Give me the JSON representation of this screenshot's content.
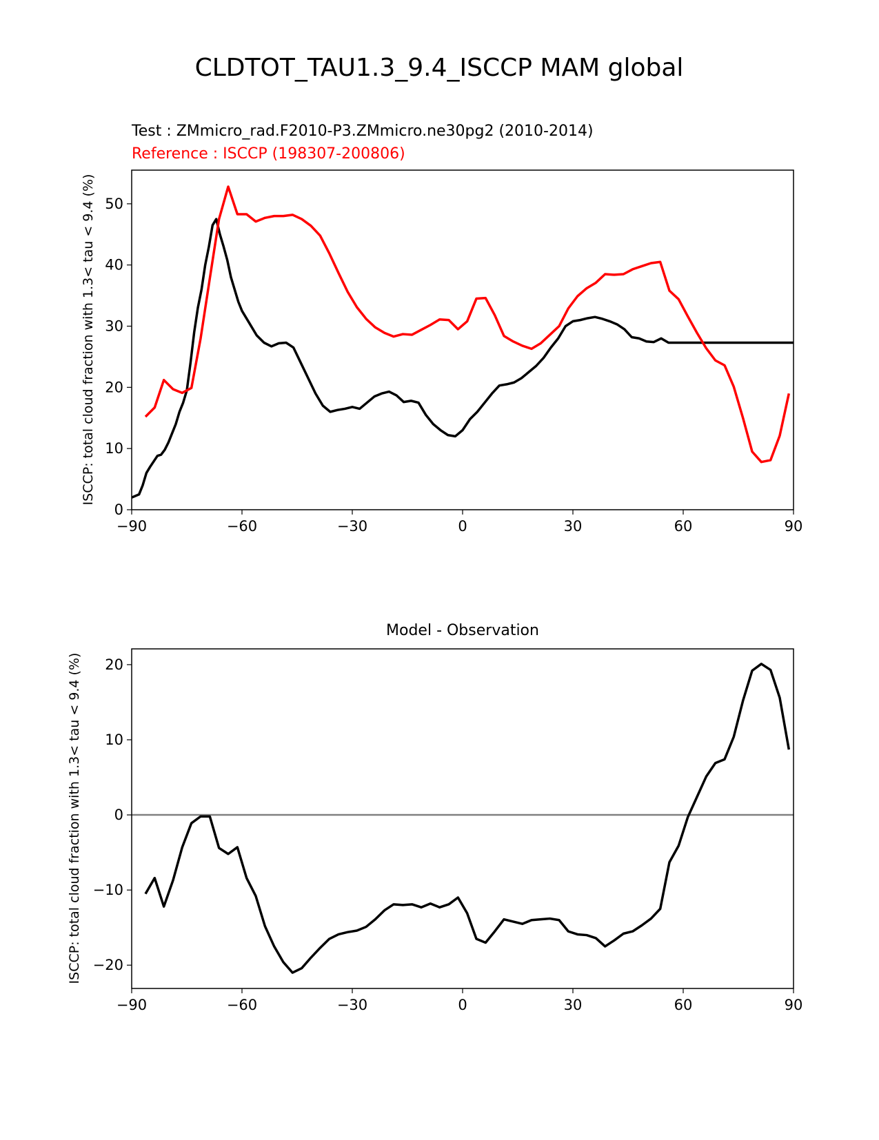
{
  "figure_title": "CLDTOT_TAU1.3_9.4_ISCCP MAM global",
  "colors": {
    "test": "#000000",
    "reference": "#ff0000",
    "zero_line": "#808080"
  },
  "chart_data": [
    {
      "type": "line",
      "test_label": "Test : ZMmicro_rad.F2010-P3.ZMmicro.ne30pg2 (2010-2014)",
      "reference_label": "Reference : ISCCP (198307-200806)",
      "ylabel": "ISCCP: total cloud fraction with 1.3< tau < 9.4 (%)",
      "xlim": [
        -90,
        90
      ],
      "ylim": [
        0,
        55.5
      ],
      "xticks": [
        -90,
        -60,
        -30,
        0,
        30,
        60,
        90
      ],
      "xtick_labels": [
        "−90",
        "−60",
        "−30",
        "0",
        "30",
        "60",
        "90"
      ],
      "yticks": [
        0,
        10,
        20,
        30,
        40,
        50
      ],
      "ytick_labels": [
        "0",
        "10",
        "20",
        "30",
        "40",
        "50"
      ],
      "series": [
        {
          "role": "test",
          "x": [
            -90,
            -88,
            -87,
            -86,
            -85,
            -83,
            -82,
            -81,
            -80,
            -79,
            -78,
            -77,
            -76,
            -75,
            -74,
            -73,
            -72,
            -71,
            -70,
            -69,
            -68,
            -67,
            -66,
            -65,
            -64,
            -63,
            -62,
            -61,
            -60,
            -59,
            -58,
            -56,
            -54,
            -52,
            -50,
            -48,
            -46,
            -44,
            -42,
            -40,
            -38,
            -36,
            -34,
            -32,
            -30,
            -28,
            -26,
            -24,
            -22,
            -20,
            -18,
            -16,
            -14,
            -12,
            -10,
            -8,
            -6,
            -4,
            -2,
            0,
            2,
            4,
            6,
            8,
            10,
            12,
            14,
            16,
            18,
            20,
            22,
            24,
            26,
            28,
            30,
            32,
            34,
            36,
            38,
            40,
            42,
            44,
            46,
            48,
            50,
            52,
            54,
            56,
            58,
            60,
            62,
            64,
            66,
            68,
            70,
            72,
            74,
            76,
            78,
            80,
            82,
            84,
            86,
            88,
            90
          ],
          "y": [
            2,
            2.5,
            4,
            6,
            7,
            8.8,
            9,
            9.8,
            11,
            12.5,
            14,
            16,
            17.5,
            19.5,
            24,
            29,
            33,
            36,
            40,
            43,
            46.5,
            47.5,
            45,
            43,
            40.8,
            38,
            36,
            34,
            32.5,
            31.5,
            30.5,
            28.5,
            27.3,
            26.7,
            27.2,
            27.3,
            26.5,
            24,
            21.5,
            19,
            17,
            16,
            16.3,
            16.5,
            16.8,
            16.5,
            17.5,
            18.5,
            19,
            19.3,
            18.7,
            17.6,
            17.8,
            17.5,
            15.5,
            14,
            13,
            12.2,
            12,
            13,
            14.8,
            16,
            17.5,
            19,
            20.3,
            20.5,
            20.8,
            21.5,
            22.5,
            23.5,
            24.8,
            26.5,
            28,
            30,
            30.8,
            31,
            31.3,
            31.5,
            31.2,
            30.8,
            30.3,
            29.5,
            28.2,
            28,
            27.5,
            27.4,
            28,
            27.3,
            27.3,
            27.3,
            27.3,
            27.3,
            27.3,
            27.3,
            27.3,
            27.3,
            27.3,
            27.3,
            27.3,
            27.3,
            27.3,
            27.3,
            27.3,
            27.3,
            27.3
          ]
        },
        {
          "role": "reference",
          "x": [
            -86.25,
            -83.75,
            -81.25,
            -78.75,
            -76.25,
            -73.75,
            -71.25,
            -68.75,
            -66.25,
            -63.75,
            -61.25,
            -58.75,
            -56.25,
            -53.75,
            -51.25,
            -48.75,
            -46.25,
            -43.75,
            -41.25,
            -38.75,
            -36.25,
            -33.75,
            -31.25,
            -28.75,
            -26.25,
            -23.75,
            -21.25,
            -18.75,
            -16.25,
            -13.75,
            -11.25,
            -8.75,
            -6.25,
            -3.75,
            -1.25,
            1.25,
            3.75,
            6.25,
            8.75,
            11.25,
            13.75,
            16.25,
            18.75,
            21.25,
            23.75,
            26.25,
            28.75,
            31.25,
            33.75,
            36.25,
            38.75,
            41.25,
            43.75,
            46.25,
            48.75,
            51.25,
            53.75,
            56.25,
            58.75,
            61.25,
            63.75,
            66.25,
            68.75,
            71.25,
            73.75,
            76.25,
            78.75,
            81.25,
            83.75,
            86.25,
            88.75
          ],
          "y": [
            15.2,
            16.7,
            21.2,
            19.7,
            19.1,
            19.9,
            28.0,
            37.8,
            47.5,
            52.8,
            48.3,
            48.3,
            47.1,
            47.7,
            48.0,
            48.0,
            48.2,
            47.5,
            46.4,
            44.8,
            41.9,
            38.7,
            35.6,
            33.1,
            31.2,
            29.8,
            28.9,
            28.3,
            28.7,
            28.6,
            29.4,
            30.2,
            31.1,
            31.0,
            29.5,
            30.8,
            34.5,
            34.6,
            31.8,
            28.4,
            27.5,
            26.8,
            26.3,
            27.2,
            28.6,
            30.0,
            32.9,
            34.9,
            36.2,
            37.1,
            38.5,
            38.4,
            38.5,
            39.3,
            39.8,
            40.3,
            40.5,
            35.8,
            34.4,
            31.6,
            28.9,
            26.4,
            24.4,
            23.6,
            20.1,
            15.0,
            9.5,
            7.8,
            8.1,
            12.1,
            19.0
          ]
        }
      ]
    },
    {
      "type": "line",
      "title": "Model - Observation",
      "ylabel": "ISCCP: total cloud fraction with 1.3< tau < 9.4 (%)",
      "xlim": [
        -90,
        90
      ],
      "ylim": [
        -23.1,
        22.1
      ],
      "xticks": [
        -90,
        -60,
        -30,
        0,
        30,
        60,
        90
      ],
      "xtick_labels": [
        "−90",
        "−60",
        "−30",
        "0",
        "30",
        "60",
        "90"
      ],
      "yticks": [
        -20,
        -10,
        0,
        10,
        20
      ],
      "ytick_labels": [
        "−20",
        "−10",
        "0",
        "10",
        "20"
      ],
      "zero_line": true,
      "series": [
        {
          "role": "difference",
          "x": [
            -86.25,
            -83.75,
            -81.25,
            -78.75,
            -76.25,
            -73.75,
            -71.25,
            -68.75,
            -66.25,
            -63.75,
            -61.25,
            -58.75,
            -56.25,
            -53.75,
            -51.25,
            -48.75,
            -46.25,
            -43.75,
            -41.25,
            -38.75,
            -36.25,
            -33.75,
            -31.25,
            -28.75,
            -26.25,
            -23.75,
            -21.25,
            -18.75,
            -16.25,
            -13.75,
            -11.25,
            -8.75,
            -6.25,
            -3.75,
            -1.25,
            1.25,
            3.75,
            6.25,
            8.75,
            11.25,
            13.75,
            16.25,
            18.75,
            21.25,
            23.75,
            26.25,
            28.75,
            31.25,
            33.75,
            36.25,
            38.75,
            41.25,
            43.75,
            46.25,
            48.75,
            51.25,
            53.75,
            56.25,
            58.75,
            61.25,
            63.75,
            66.25,
            68.75,
            71.25,
            73.75,
            76.25,
            78.75,
            81.25,
            83.75,
            86.25,
            88.75
          ],
          "y": [
            -10.5,
            -8.4,
            -12.2,
            -8.7,
            -4.3,
            -1.1,
            -0.2,
            -0.2,
            -4.4,
            -5.2,
            -4.3,
            -8.4,
            -10.8,
            -14.8,
            -17.5,
            -19.6,
            -21.0,
            -20.4,
            -19.0,
            -17.7,
            -16.5,
            -15.9,
            -15.6,
            -15.4,
            -14.9,
            -13.9,
            -12.7,
            -11.9,
            -12.0,
            -11.9,
            -12.3,
            -11.8,
            -12.3,
            -11.9,
            -11.0,
            -13.1,
            -16.5,
            -17.0,
            -15.5,
            -13.9,
            -14.2,
            -14.5,
            -14.0,
            -13.9,
            -13.8,
            -14.0,
            -15.5,
            -15.9,
            -16.0,
            -16.4,
            -17.5,
            -16.7,
            -15.8,
            -15.5,
            -14.7,
            -13.8,
            -12.5,
            -6.3,
            -4.1,
            -0.3,
            2.4,
            5.1,
            6.9,
            7.4,
            10.4,
            15.2,
            19.2,
            20.1,
            19.3,
            15.6,
            8.7
          ]
        }
      ]
    }
  ]
}
